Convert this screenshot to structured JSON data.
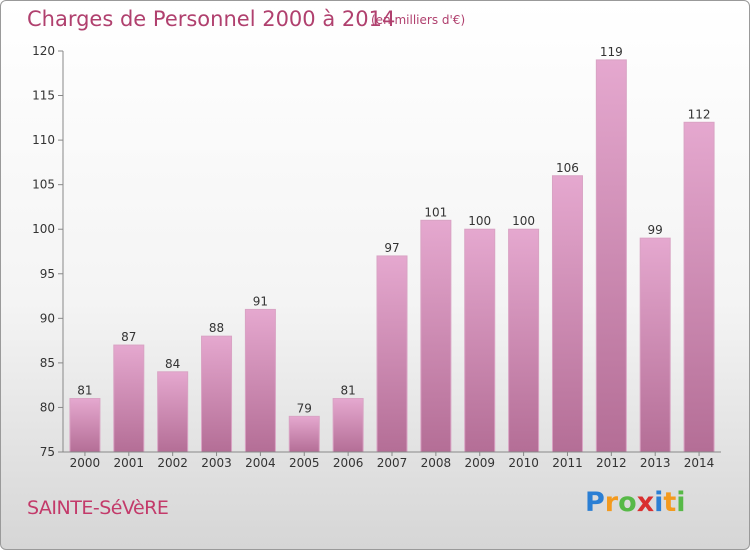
{
  "header": {
    "title": "Charges de Personnel 2000 à 2014",
    "subtitle": "(en milliers d'€)"
  },
  "footer": {
    "city": "SAINTE-SéVèRE",
    "logo": "Proxiti"
  },
  "colors": {
    "bar_top": "#e5a8cf",
    "bar_bottom": "#b46e96",
    "title": "#b0406e",
    "axis": "#888888"
  },
  "chart_data": {
    "type": "bar",
    "title": "Charges de Personnel 2000 à 2014",
    "subtitle": "(en milliers d'€)",
    "xlabel": "",
    "ylabel": "",
    "categories": [
      "2000",
      "2001",
      "2002",
      "2003",
      "2004",
      "2005",
      "2006",
      "2007",
      "2008",
      "2009",
      "2010",
      "2011",
      "2012",
      "2013",
      "2014"
    ],
    "values": [
      81,
      87,
      84,
      88,
      91,
      79,
      81,
      97,
      101,
      100,
      100,
      106,
      119,
      99,
      112
    ],
    "ylim": [
      75,
      120
    ],
    "yticks": [
      75,
      80,
      85,
      90,
      95,
      100,
      105,
      110,
      115,
      120
    ],
    "grid": false,
    "data_labels": true
  }
}
